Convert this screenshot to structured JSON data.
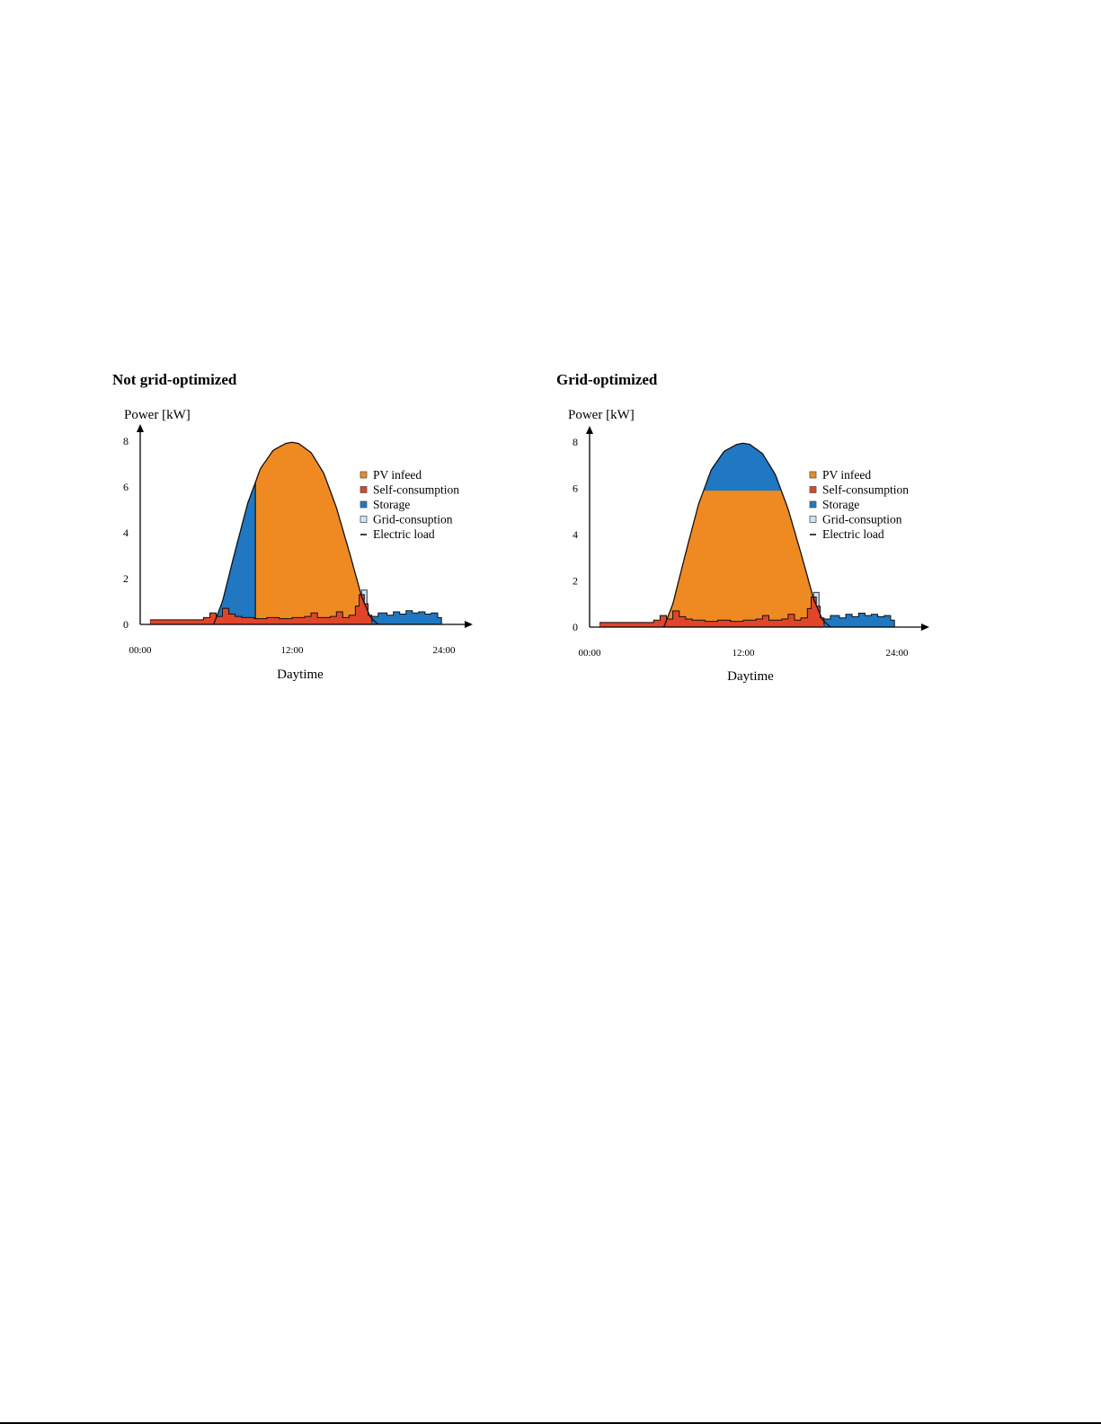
{
  "chart_data": [
    {
      "type": "area",
      "title": "Not grid-optimized",
      "ylabel": "Power [kW]",
      "xlabel": "Daytime",
      "xlim": [
        0,
        24
      ],
      "ylim": [
        0,
        8
      ],
      "yticks": [
        0,
        2,
        4,
        6,
        8
      ],
      "xticks": [
        {
          "value": 0,
          "label": "00:00"
        },
        {
          "value": 12,
          "label": "12:00"
        },
        {
          "value": 24,
          "label": "24:00"
        }
      ],
      "legend_position": "right",
      "legend": [
        {
          "label": "PV infeed",
          "color": "#ef8a22",
          "icon": "square-marker"
        },
        {
          "label": "Self-consumption",
          "color": "#e0452a",
          "icon": "square-marker"
        },
        {
          "label": "Storage",
          "color": "#1f78c1",
          "icon": "square-marker"
        },
        {
          "label": "Grid-consuption",
          "color": "#cfe4f6",
          "icon": "square-marker"
        },
        {
          "label": "Electric load",
          "color": "#000000",
          "icon": "dash-marker"
        }
      ],
      "pv_infeed": {
        "x": [
          5.8,
          6.5,
          7.5,
          8.5,
          9.5,
          10.5,
          11.5,
          12.0,
          12.5,
          13.5,
          14.5,
          15.5,
          16.5,
          17.5,
          18.2,
          18.8
        ],
        "y": [
          0.0,
          1.0,
          3.2,
          5.3,
          6.8,
          7.6,
          7.9,
          7.95,
          7.9,
          7.5,
          6.6,
          5.1,
          3.2,
          1.2,
          0.3,
          0.0
        ]
      },
      "storage_charging": {
        "from": 5.8,
        "to": 9.1
      },
      "self_consumption": {
        "x": [
          0.8,
          5.0,
          5.0,
          5.5,
          6.0,
          6.5,
          7.0,
          7.5,
          8.0,
          9.0,
          10.0,
          11.0,
          12.0,
          13.0,
          13.5,
          14.0,
          15.0,
          15.5,
          16.0,
          16.5,
          17.0,
          17.3,
          17.7,
          18.0,
          18.3
        ],
        "y": [
          0.2,
          0.2,
          0.3,
          0.5,
          0.35,
          0.7,
          0.45,
          0.35,
          0.3,
          0.25,
          0.3,
          0.25,
          0.3,
          0.35,
          0.5,
          0.3,
          0.35,
          0.55,
          0.3,
          0.4,
          0.8,
          1.3,
          0.9,
          0.4,
          0.1
        ]
      },
      "grid_consumption_peak": {
        "x": 17.7,
        "y": 1.5
      },
      "storage_discharge_night": {
        "x": [
          18.3,
          18.8,
          19.5,
          20.0,
          20.5,
          21.0,
          21.5,
          22.0,
          22.5,
          23.0,
          23.5,
          23.8
        ],
        "y": [
          0.35,
          0.5,
          0.4,
          0.55,
          0.45,
          0.6,
          0.5,
          0.55,
          0.45,
          0.5,
          0.3,
          0.15
        ]
      },
      "storage_discharge_morning": {
        "from": 0.8,
        "to": 5.0,
        "y": 0.2
      }
    },
    {
      "type": "area",
      "title": "Grid-optimized",
      "ylabel": "Power [kW]",
      "xlabel": "Daytime",
      "xlim": [
        0,
        24
      ],
      "ylim": [
        0,
        8
      ],
      "yticks": [
        0,
        2,
        4,
        6,
        8
      ],
      "xticks": [
        {
          "value": 0,
          "label": "00:00"
        },
        {
          "value": 12,
          "label": "12:00"
        },
        {
          "value": 24,
          "label": "24:00"
        }
      ],
      "legend_position": "right",
      "legend": [
        {
          "label": "PV infeed",
          "color": "#ef8a22",
          "icon": "square-marker"
        },
        {
          "label": "Self-consumption",
          "color": "#e0452a",
          "icon": "square-marker"
        },
        {
          "label": "Storage",
          "color": "#1f78c1",
          "icon": "square-marker"
        },
        {
          "label": "Grid-consuption",
          "color": "#cfe4f6",
          "icon": "square-marker"
        },
        {
          "label": "Electric load",
          "color": "#000000",
          "icon": "dash-marker"
        }
      ],
      "pv_infeed": {
        "x": [
          5.8,
          6.5,
          7.5,
          8.5,
          9.5,
          10.5,
          11.5,
          12.0,
          12.5,
          13.5,
          14.5,
          15.5,
          16.5,
          17.5,
          18.2,
          18.8
        ],
        "y": [
          0.0,
          1.0,
          3.2,
          5.3,
          6.8,
          7.6,
          7.9,
          7.95,
          7.9,
          7.5,
          6.6,
          5.1,
          3.2,
          1.2,
          0.3,
          0.0
        ]
      },
      "storage_cap_threshold": 5.9,
      "self_consumption": {
        "x": [
          0.8,
          5.0,
          5.0,
          5.5,
          6.0,
          6.5,
          7.0,
          7.5,
          8.0,
          9.0,
          10.0,
          11.0,
          12.0,
          13.0,
          13.5,
          14.0,
          15.0,
          15.5,
          16.0,
          16.5,
          17.0,
          17.3,
          17.7,
          18.0,
          18.3
        ],
        "y": [
          0.2,
          0.2,
          0.3,
          0.5,
          0.35,
          0.7,
          0.45,
          0.35,
          0.3,
          0.25,
          0.3,
          0.25,
          0.3,
          0.35,
          0.5,
          0.3,
          0.35,
          0.55,
          0.3,
          0.4,
          0.8,
          1.3,
          0.9,
          0.4,
          0.1
        ]
      },
      "grid_consumption_peak": {
        "x": 17.7,
        "y": 1.5
      },
      "storage_discharge_night": {
        "x": [
          18.3,
          18.8,
          19.5,
          20.0,
          20.5,
          21.0,
          21.5,
          22.0,
          22.5,
          23.0,
          23.5,
          23.8
        ],
        "y": [
          0.35,
          0.5,
          0.4,
          0.55,
          0.45,
          0.6,
          0.5,
          0.55,
          0.45,
          0.5,
          0.3,
          0.15
        ]
      },
      "storage_discharge_morning": {
        "from": 0.8,
        "to": 5.0,
        "y": 0.2
      }
    }
  ]
}
